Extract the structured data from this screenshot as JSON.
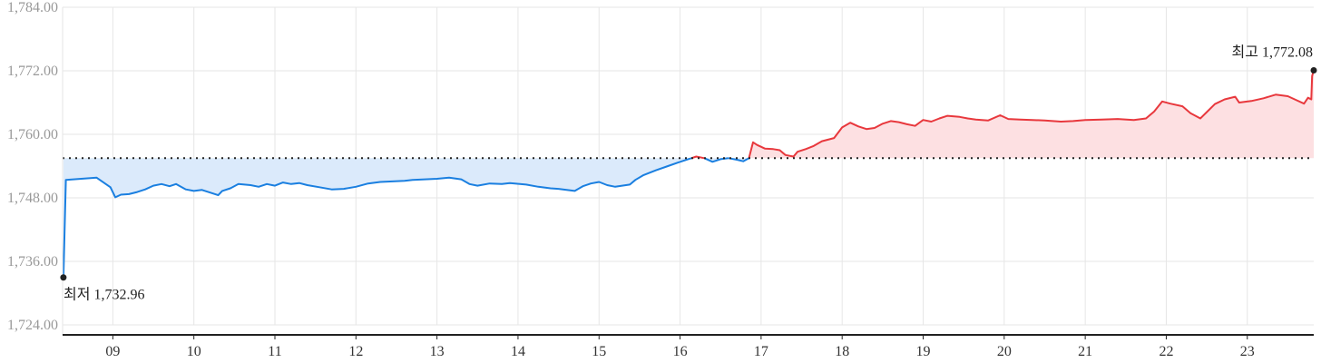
{
  "chart_data": {
    "type": "area",
    "y_ticks": [
      "1,784.00",
      "1,772.00",
      "1,760.00",
      "1,748.00",
      "1,736.00",
      "1,724.00"
    ],
    "x_ticks": [
      "09",
      "10",
      "11",
      "12",
      "13",
      "14",
      "15",
      "16",
      "17",
      "18",
      "19",
      "20",
      "21",
      "22",
      "23"
    ],
    "ylim": [
      1724,
      1784
    ],
    "xlim": [
      8.38,
      23.82
    ],
    "grid": true,
    "baseline": 1755.5,
    "colors": {
      "above": "#e8383d",
      "above_fill": "#fde0e2",
      "below": "#1a7fe0",
      "below_fill": "#dbeafb",
      "baseline": "#222222",
      "grid": "#e6e6e6",
      "axis": "#222222"
    },
    "min": {
      "label": "최저 1,732.96",
      "x": 8.39,
      "y": 1732.96
    },
    "max": {
      "label": "최고 1,772.08",
      "x": 23.82,
      "y": 1772.08
    },
    "series": [
      {
        "points": [
          [
            8.39,
            1732.96
          ],
          [
            8.42,
            1751.4
          ],
          [
            8.8,
            1751.8
          ],
          [
            8.97,
            1750.0
          ],
          [
            9.03,
            1748.1
          ],
          [
            9.1,
            1748.6
          ],
          [
            9.2,
            1748.7
          ],
          [
            9.3,
            1749.1
          ],
          [
            9.4,
            1749.6
          ],
          [
            9.5,
            1750.3
          ],
          [
            9.6,
            1750.6
          ],
          [
            9.7,
            1750.2
          ],
          [
            9.78,
            1750.6
          ],
          [
            9.9,
            1749.6
          ],
          [
            10.0,
            1749.3
          ],
          [
            10.1,
            1749.5
          ],
          [
            10.2,
            1749.0
          ],
          [
            10.3,
            1748.5
          ],
          [
            10.35,
            1749.3
          ],
          [
            10.45,
            1749.8
          ],
          [
            10.55,
            1750.6
          ],
          [
            10.7,
            1750.4
          ],
          [
            10.8,
            1750.1
          ],
          [
            10.9,
            1750.6
          ],
          [
            11.0,
            1750.3
          ],
          [
            11.1,
            1750.9
          ],
          [
            11.2,
            1750.6
          ],
          [
            11.3,
            1750.8
          ],
          [
            11.4,
            1750.4
          ],
          [
            11.55,
            1750.0
          ],
          [
            11.7,
            1749.6
          ],
          [
            11.85,
            1749.7
          ],
          [
            12.0,
            1750.1
          ],
          [
            12.15,
            1750.7
          ],
          [
            12.3,
            1751.0
          ],
          [
            12.45,
            1751.1
          ],
          [
            12.6,
            1751.2
          ],
          [
            12.7,
            1751.4
          ],
          [
            12.85,
            1751.5
          ],
          [
            13.0,
            1751.6
          ],
          [
            13.15,
            1751.8
          ],
          [
            13.3,
            1751.5
          ],
          [
            13.4,
            1750.6
          ],
          [
            13.5,
            1750.3
          ],
          [
            13.65,
            1750.7
          ],
          [
            13.8,
            1750.6
          ],
          [
            13.9,
            1750.8
          ],
          [
            14.1,
            1750.5
          ],
          [
            14.25,
            1750.1
          ],
          [
            14.4,
            1749.8
          ],
          [
            14.5,
            1749.7
          ],
          [
            14.6,
            1749.5
          ],
          [
            14.7,
            1749.3
          ],
          [
            14.8,
            1750.2
          ],
          [
            14.9,
            1750.7
          ],
          [
            15.0,
            1751.0
          ],
          [
            15.1,
            1750.4
          ],
          [
            15.2,
            1750.1
          ],
          [
            15.38,
            1750.5
          ],
          [
            15.45,
            1751.4
          ],
          [
            15.55,
            1752.3
          ],
          [
            15.7,
            1753.2
          ],
          [
            15.85,
            1754.0
          ],
          [
            15.98,
            1754.7
          ],
          [
            16.1,
            1755.3
          ],
          [
            16.2,
            1755.8
          ],
          [
            16.3,
            1755.5
          ],
          [
            16.4,
            1754.8
          ],
          [
            16.5,
            1755.3
          ],
          [
            16.6,
            1755.5
          ],
          [
            16.7,
            1755.2
          ],
          [
            16.78,
            1754.9
          ],
          [
            16.85,
            1755.5
          ],
          [
            16.9,
            1758.5
          ],
          [
            16.95,
            1758.0
          ],
          [
            17.05,
            1757.3
          ],
          [
            17.15,
            1757.2
          ],
          [
            17.23,
            1757.0
          ],
          [
            17.3,
            1756.1
          ],
          [
            17.4,
            1755.8
          ],
          [
            17.45,
            1756.7
          ],
          [
            17.55,
            1757.2
          ],
          [
            17.65,
            1757.8
          ],
          [
            17.75,
            1758.7
          ],
          [
            17.9,
            1759.3
          ],
          [
            18.0,
            1761.3
          ],
          [
            18.1,
            1762.2
          ],
          [
            18.2,
            1761.5
          ],
          [
            18.3,
            1761.0
          ],
          [
            18.4,
            1761.2
          ],
          [
            18.5,
            1762.0
          ],
          [
            18.6,
            1762.5
          ],
          [
            18.7,
            1762.3
          ],
          [
            18.8,
            1761.9
          ],
          [
            18.9,
            1761.6
          ],
          [
            19.0,
            1762.7
          ],
          [
            19.1,
            1762.4
          ],
          [
            19.2,
            1763.0
          ],
          [
            19.3,
            1763.5
          ],
          [
            19.45,
            1763.3
          ],
          [
            19.55,
            1763.0
          ],
          [
            19.65,
            1762.8
          ],
          [
            19.8,
            1762.6
          ],
          [
            19.95,
            1763.6
          ],
          [
            20.05,
            1762.9
          ],
          [
            20.2,
            1762.8
          ],
          [
            20.35,
            1762.7
          ],
          [
            20.5,
            1762.6
          ],
          [
            20.7,
            1762.4
          ],
          [
            20.85,
            1762.5
          ],
          [
            21.0,
            1762.7
          ],
          [
            21.2,
            1762.8
          ],
          [
            21.4,
            1762.9
          ],
          [
            21.6,
            1762.7
          ],
          [
            21.75,
            1763.0
          ],
          [
            21.85,
            1764.3
          ],
          [
            21.95,
            1766.2
          ],
          [
            22.05,
            1765.8
          ],
          [
            22.2,
            1765.3
          ],
          [
            22.3,
            1764.0
          ],
          [
            22.42,
            1763.0
          ],
          [
            22.5,
            1764.2
          ],
          [
            22.6,
            1765.7
          ],
          [
            22.72,
            1766.6
          ],
          [
            22.85,
            1767.1
          ],
          [
            22.9,
            1766.0
          ],
          [
            23.05,
            1766.3
          ],
          [
            23.2,
            1766.8
          ],
          [
            23.35,
            1767.5
          ],
          [
            23.5,
            1767.2
          ],
          [
            23.6,
            1766.5
          ],
          [
            23.7,
            1765.8
          ],
          [
            23.75,
            1766.9
          ],
          [
            23.79,
            1766.6
          ],
          [
            23.8,
            1771.0
          ],
          [
            23.82,
            1772.08
          ]
        ]
      }
    ]
  }
}
